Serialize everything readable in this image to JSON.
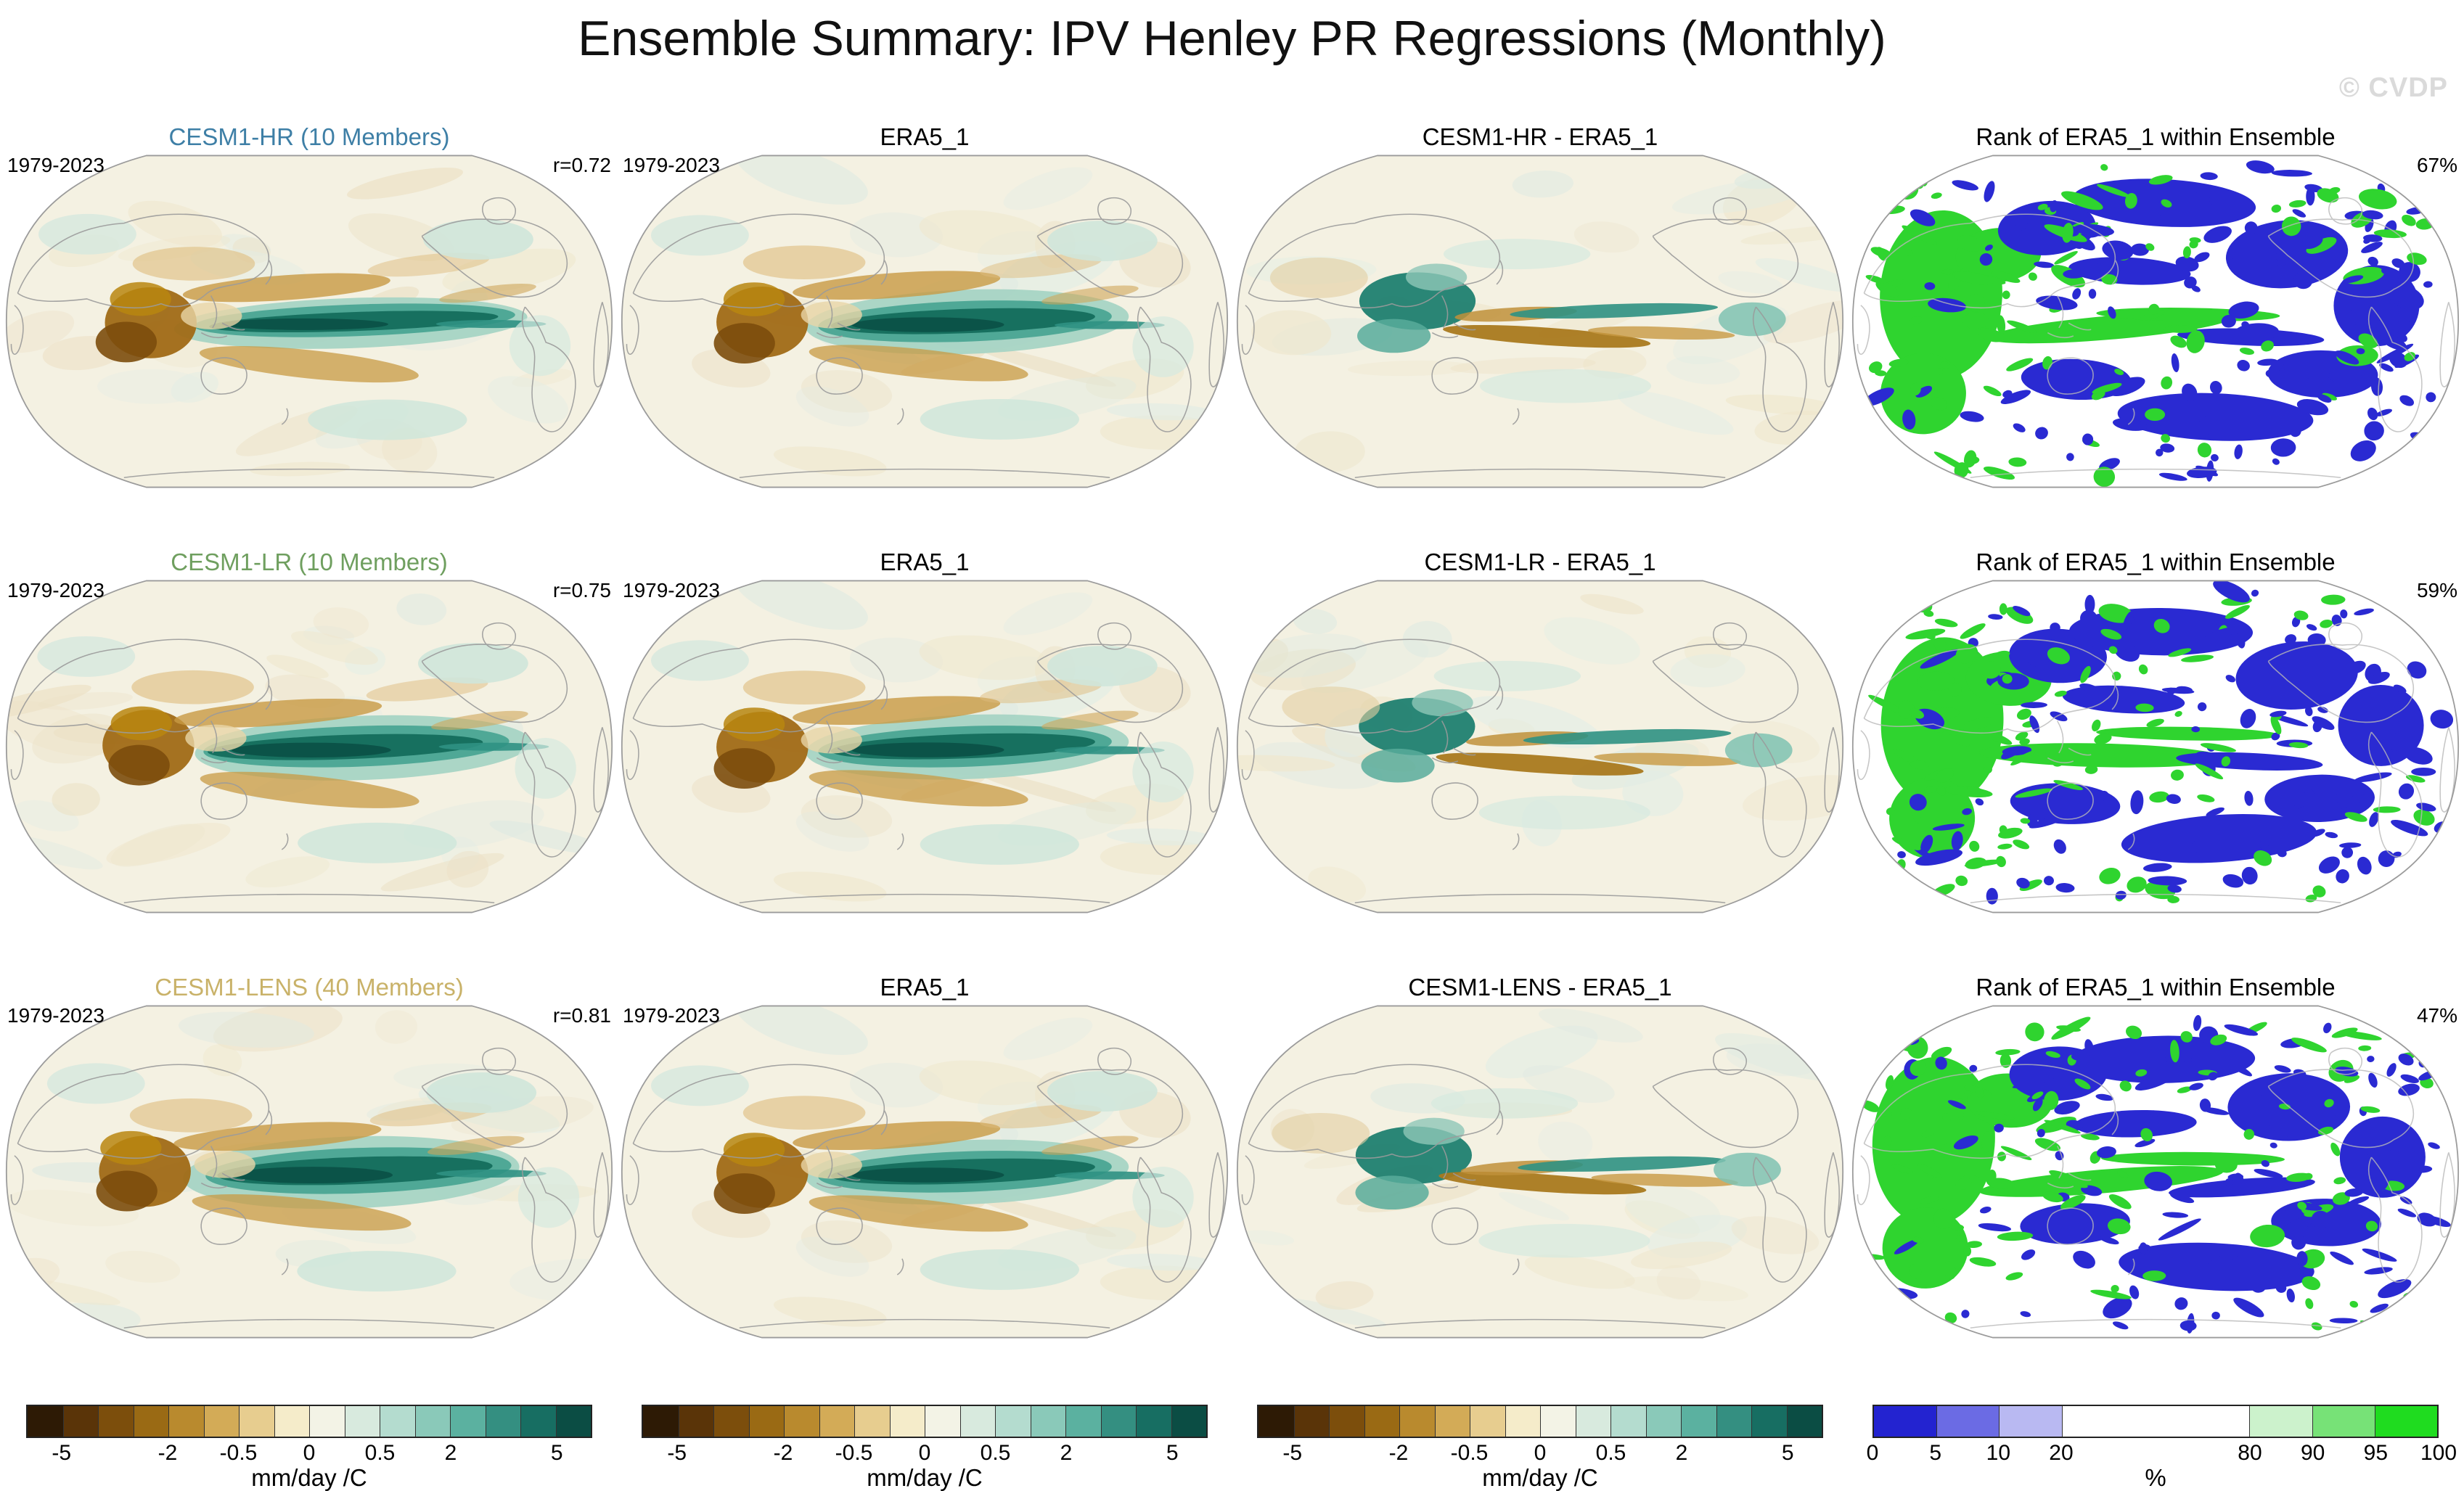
{
  "title": "Ensemble Summary: IPV Henley PR Regressions (Monthly)",
  "watermark": "© CVDP",
  "rows": [
    {
      "panels": [
        {
          "id": "hr",
          "kind": "regression",
          "title": "CESM1-HR (10 Members)",
          "title_color": "#3e7fa6",
          "left_label": "1979-2023",
          "right_label": "r=0.72"
        },
        {
          "id": "era5",
          "kind": "regression",
          "title": "ERA5_1",
          "title_color": "#000000",
          "left_label": "1979-2023",
          "right_label": ""
        },
        {
          "id": "hr_diff",
          "kind": "diff",
          "title": "CESM1-HR - ERA5_1",
          "title_color": "#000000",
          "left_label": "",
          "right_label": ""
        },
        {
          "id": "hr_rank",
          "kind": "rank",
          "title": "Rank of ERA5_1 within Ensemble",
          "title_color": "#000000",
          "left_label": "",
          "right_label": "67%"
        }
      ]
    },
    {
      "panels": [
        {
          "id": "lr",
          "kind": "regression",
          "title": "CESM1-LR (10 Members)",
          "title_color": "#6f9f5f",
          "left_label": "1979-2023",
          "right_label": "r=0.75"
        },
        {
          "id": "era5",
          "kind": "regression",
          "title": "ERA5_1",
          "title_color": "#000000",
          "left_label": "1979-2023",
          "right_label": ""
        },
        {
          "id": "lr_diff",
          "kind": "diff",
          "title": "CESM1-LR - ERA5_1",
          "title_color": "#000000",
          "left_label": "",
          "right_label": ""
        },
        {
          "id": "lr_rank",
          "kind": "rank",
          "title": "Rank of ERA5_1 within Ensemble",
          "title_color": "#000000",
          "left_label": "",
          "right_label": "59%"
        }
      ]
    },
    {
      "panels": [
        {
          "id": "lens",
          "kind": "regression",
          "title": "CESM1-LENS (40 Members)",
          "title_color": "#c9b269",
          "left_label": "1979-2023",
          "right_label": "r=0.81"
        },
        {
          "id": "era5",
          "kind": "regression",
          "title": "ERA5_1",
          "title_color": "#000000",
          "left_label": "1979-2023",
          "right_label": ""
        },
        {
          "id": "lens_diff",
          "kind": "diff",
          "title": "CESM1-LENS - ERA5_1",
          "title_color": "#000000",
          "left_label": "",
          "right_label": ""
        },
        {
          "id": "lens_rank",
          "kind": "rank",
          "title": "Rank of ERA5_1 within Ensemble",
          "title_color": "#000000",
          "left_label": "",
          "right_label": "47%"
        }
      ]
    }
  ],
  "colorbars": {
    "regression": {
      "unit": "mm/day /C",
      "ticks": [
        "-5",
        "-2",
        "-0.5",
        "0",
        "0.5",
        "2",
        "5"
      ],
      "colors": [
        "#2d1a05",
        "#5a3408",
        "#7c4e0c",
        "#9a6a14",
        "#b98a2e",
        "#d3ab57",
        "#e7cd8f",
        "#f5ecca",
        "#f3f3e6",
        "#d8eade",
        "#b4dccf",
        "#8ac9b9",
        "#5bb1a0",
        "#348f81",
        "#176e62",
        "#0b4d44"
      ]
    },
    "rank": {
      "unit": "%",
      "ticks": [
        "0",
        "5",
        "10",
        "20",
        "80",
        "90",
        "95",
        "100"
      ],
      "colors": [
        "#2323d0",
        "#6b6be4",
        "#b9b9f2",
        "#ffffff",
        "#ccf2cc",
        "#77e277",
        "#1fdc1f"
      ]
    }
  },
  "map_colors": {
    "base": "#f4f1e2",
    "teal_core": "#0b5348",
    "brown_core": "#7c4d0c",
    "rank_blue": "#2a2ad2",
    "rank_green": "#2fd42f",
    "coastline": "#9b9b9b"
  },
  "chart_data": {
    "type": "heatmap",
    "subtype": "global-regression-map-grid",
    "title": "Ensemble Summary: IPV Henley PR Regressions (Monthly)",
    "variable": "IPV Henley PR regression",
    "units": "mm/day /C",
    "period": "1979-2023",
    "projection": "Robinson (Pacific-centered)",
    "grid": {
      "rows": 3,
      "cols": 4
    },
    "row_models": [
      "CESM1-HR (10 Members)",
      "CESM1-LR (10 Members)",
      "CESM1-LENS (40 Members)"
    ],
    "reference_dataset": "ERA5_1",
    "panels": [
      {
        "row": 0,
        "col": 0,
        "title": "CESM1-HR (10 Members)",
        "period": "1979-2023",
        "r": 0.72
      },
      {
        "row": 0,
        "col": 1,
        "title": "ERA5_1",
        "period": "1979-2023"
      },
      {
        "row": 0,
        "col": 2,
        "title": "CESM1-HR - ERA5_1"
      },
      {
        "row": 0,
        "col": 3,
        "title": "Rank of ERA5_1 within Ensemble",
        "percent": 67
      },
      {
        "row": 1,
        "col": 0,
        "title": "CESM1-LR (10 Members)",
        "period": "1979-2023",
        "r": 0.75
      },
      {
        "row": 1,
        "col": 1,
        "title": "ERA5_1",
        "period": "1979-2023"
      },
      {
        "row": 1,
        "col": 2,
        "title": "CESM1-LR - ERA5_1"
      },
      {
        "row": 1,
        "col": 3,
        "title": "Rank of ERA5_1 within Ensemble",
        "percent": 59
      },
      {
        "row": 2,
        "col": 0,
        "title": "CESM1-LENS (40 Members)",
        "period": "1979-2023",
        "r": 0.81
      },
      {
        "row": 2,
        "col": 1,
        "title": "ERA5_1",
        "period": "1979-2023"
      },
      {
        "row": 2,
        "col": 2,
        "title": "CESM1-LENS - ERA5_1"
      },
      {
        "row": 2,
        "col": 3,
        "title": "Rank of ERA5_1 within Ensemble",
        "percent": 47
      }
    ],
    "correlations": {
      "CESM1-HR": 0.72,
      "CESM1-LR": 0.75,
      "CESM1-LENS": 0.81
    },
    "rank_percentages": {
      "CESM1-HR": 67,
      "CESM1-LR": 59,
      "CESM1-LENS": 47
    },
    "colorbars": [
      {
        "applies_to": "columns 1-3",
        "ticks": [
          -5,
          -2,
          -0.5,
          0,
          0.5,
          2,
          5
        ],
        "units": "mm/day /C",
        "palette": "brown-white-teal diverging, 16 segments"
      },
      {
        "applies_to": "column 4 rank maps",
        "ticks": [
          0,
          5,
          10,
          20,
          80,
          90,
          95,
          100
        ],
        "units": "%",
        "palette": "blue-white-green"
      }
    ],
    "legend_position": "bottom",
    "grid_lines": false
  }
}
